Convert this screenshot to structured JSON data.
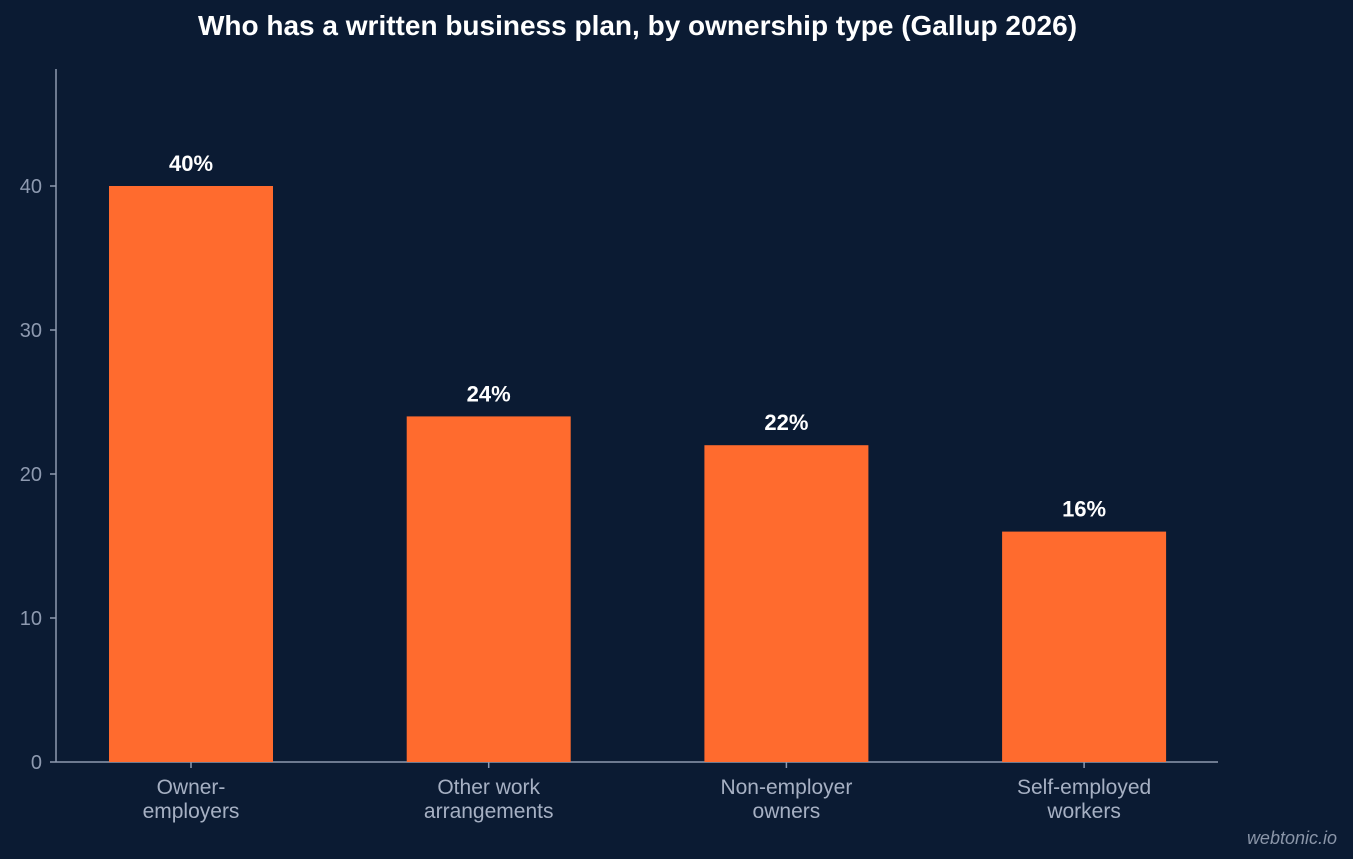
{
  "chart_data": {
    "type": "bar",
    "title": "Who has a written business plan, by ownership type (Gallup 2026)",
    "categories": [
      [
        "Owner-",
        "employers"
      ],
      [
        "Other work",
        "arrangements"
      ],
      [
        "Non-employer",
        "owners"
      ],
      [
        "Self-employed",
        "workers"
      ]
    ],
    "values": [
      40,
      24,
      22,
      16
    ],
    "data_labels": [
      "40%",
      "24%",
      "22%",
      "16%"
    ],
    "yticks": [
      0,
      10,
      20,
      30,
      40
    ],
    "ylim": [
      0,
      48
    ],
    "xlabel": "",
    "ylabel": "",
    "grid": false,
    "bar_color": "#ff6b2e"
  },
  "watermark": "webtonic.io"
}
